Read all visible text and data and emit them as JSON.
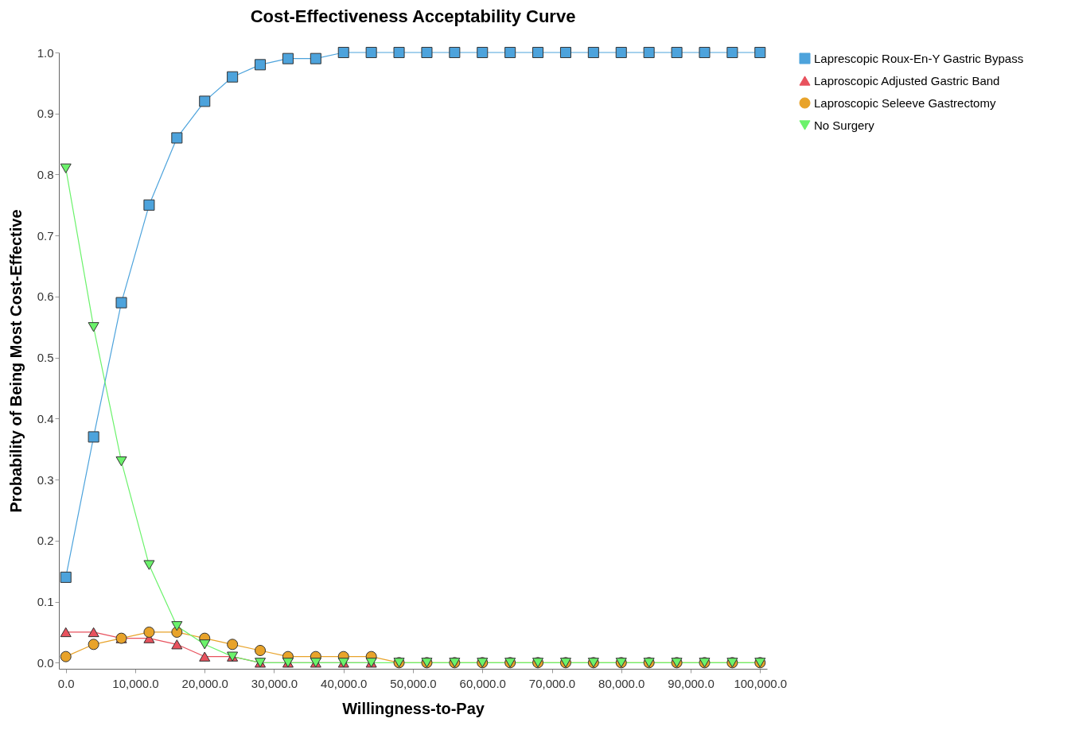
{
  "chart_data": {
    "type": "line",
    "title": "Cost-Effectiveness Acceptability Curve",
    "xlabel": "Willingness-to-Pay",
    "ylabel": "Probability of Being Most Cost-Effective",
    "x": [
      0,
      4000,
      8000,
      12000,
      16000,
      20000,
      24000,
      28000,
      32000,
      36000,
      40000,
      44000,
      48000,
      52000,
      56000,
      60000,
      64000,
      68000,
      72000,
      76000,
      80000,
      84000,
      88000,
      92000,
      96000,
      100000
    ],
    "series": [
      {
        "name": "Laprescopic Roux-En-Y Gastric Bypass",
        "color": "#4da3dc",
        "marker": "square",
        "values": [
          0.14,
          0.37,
          0.59,
          0.75,
          0.86,
          0.92,
          0.96,
          0.98,
          0.99,
          0.99,
          1,
          1,
          1,
          1,
          1,
          1,
          1,
          1,
          1,
          1,
          1,
          1,
          1,
          1,
          1,
          1
        ]
      },
      {
        "name": "Laproscopic Adjusted Gastric Band",
        "color": "#e8525e",
        "marker": "triangle",
        "values": [
          0.05,
          0.05,
          0.04,
          0.04,
          0.03,
          0.01,
          0.01,
          0,
          0,
          0,
          0,
          0,
          null,
          null,
          null,
          null,
          null,
          null,
          null,
          null,
          null,
          null,
          null,
          null,
          null,
          null
        ]
      },
      {
        "name": "Laproscopic Seleeve Gastrectomy",
        "color": "#e8a32a",
        "marker": "circle",
        "values": [
          0.01,
          0.03,
          0.04,
          0.05,
          0.05,
          0.04,
          0.03,
          0.02,
          0.01,
          0.01,
          0.01,
          0.01,
          0,
          0,
          0,
          0,
          0,
          0,
          0,
          0,
          0,
          0,
          0,
          0,
          0,
          0
        ]
      },
      {
        "name": "No Surgery",
        "color": "#6bf26b",
        "marker": "triangle-down",
        "values": [
          0.81,
          0.55,
          0.33,
          0.16,
          0.06,
          0.03,
          0.01,
          0,
          0,
          0,
          0,
          0,
          0,
          0,
          0,
          0,
          0,
          0,
          0,
          0,
          0,
          0,
          0,
          0,
          0,
          0
        ]
      }
    ],
    "xlim": [
      -1000,
      101000
    ],
    "ylim": [
      -0.01,
      1.0
    ],
    "xticks": [
      {
        "value": 0,
        "label": "0.0"
      },
      {
        "value": 10000,
        "label": "10,000.0"
      },
      {
        "value": 20000,
        "label": "20,000.0"
      },
      {
        "value": 30000,
        "label": "30,000.0"
      },
      {
        "value": 40000,
        "label": "40,000.0"
      },
      {
        "value": 50000,
        "label": "50,000.0"
      },
      {
        "value": 60000,
        "label": "60,000.0"
      },
      {
        "value": 70000,
        "label": "70,000.0"
      },
      {
        "value": 80000,
        "label": "80,000.0"
      },
      {
        "value": 90000,
        "label": "90,000.0"
      },
      {
        "value": 100000,
        "label": "100,000.0"
      }
    ],
    "yticks": [
      {
        "value": 0,
        "label": "0.0"
      },
      {
        "value": 0.1,
        "label": "0.1"
      },
      {
        "value": 0.2,
        "label": "0.2"
      },
      {
        "value": 0.3,
        "label": "0.3"
      },
      {
        "value": 0.4,
        "label": "0.4"
      },
      {
        "value": 0.5,
        "label": "0.5"
      },
      {
        "value": 0.6,
        "label": "0.6"
      },
      {
        "value": 0.7,
        "label": "0.7"
      },
      {
        "value": 0.8,
        "label": "0.8"
      },
      {
        "value": 0.9,
        "label": "0.9"
      },
      {
        "value": 1.0,
        "label": "1.0"
      }
    ],
    "grid": false,
    "legend": "right"
  }
}
